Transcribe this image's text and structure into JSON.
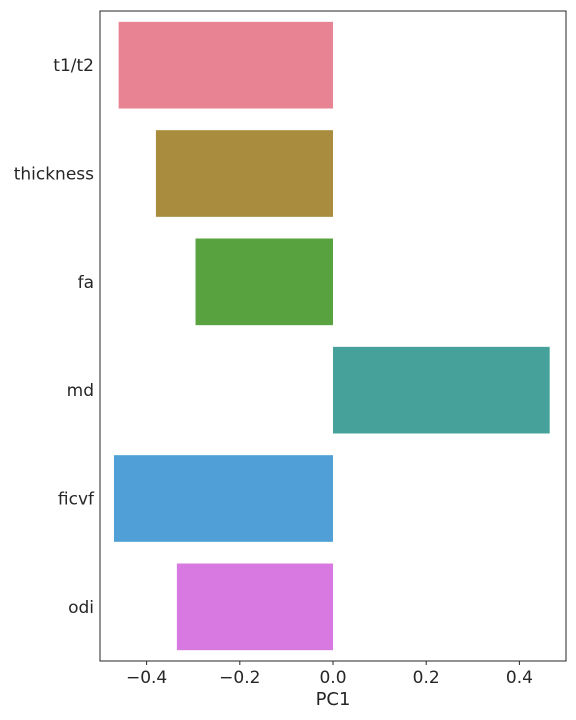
{
  "chart_data": {
    "type": "bar",
    "orientation": "horizontal",
    "xlabel": "PC1",
    "ylabel": "",
    "xlim": [
      -0.5,
      0.5
    ],
    "xticks": [
      -0.4,
      -0.2,
      0.0,
      0.2,
      0.4
    ],
    "xtick_labels": [
      "−0.4",
      "−0.2",
      "0.0",
      "0.2",
      "0.4"
    ],
    "grid": false,
    "categories": [
      "t1/t2",
      "thickness",
      "fa",
      "md",
      "ficvf",
      "odi"
    ],
    "values": [
      -0.46,
      -0.38,
      -0.295,
      0.465,
      -0.47,
      -0.335
    ],
    "colors": [
      "#e88394",
      "#a98c3e",
      "#58a33f",
      "#46a19a",
      "#50a0d7",
      "#d878e1"
    ]
  }
}
